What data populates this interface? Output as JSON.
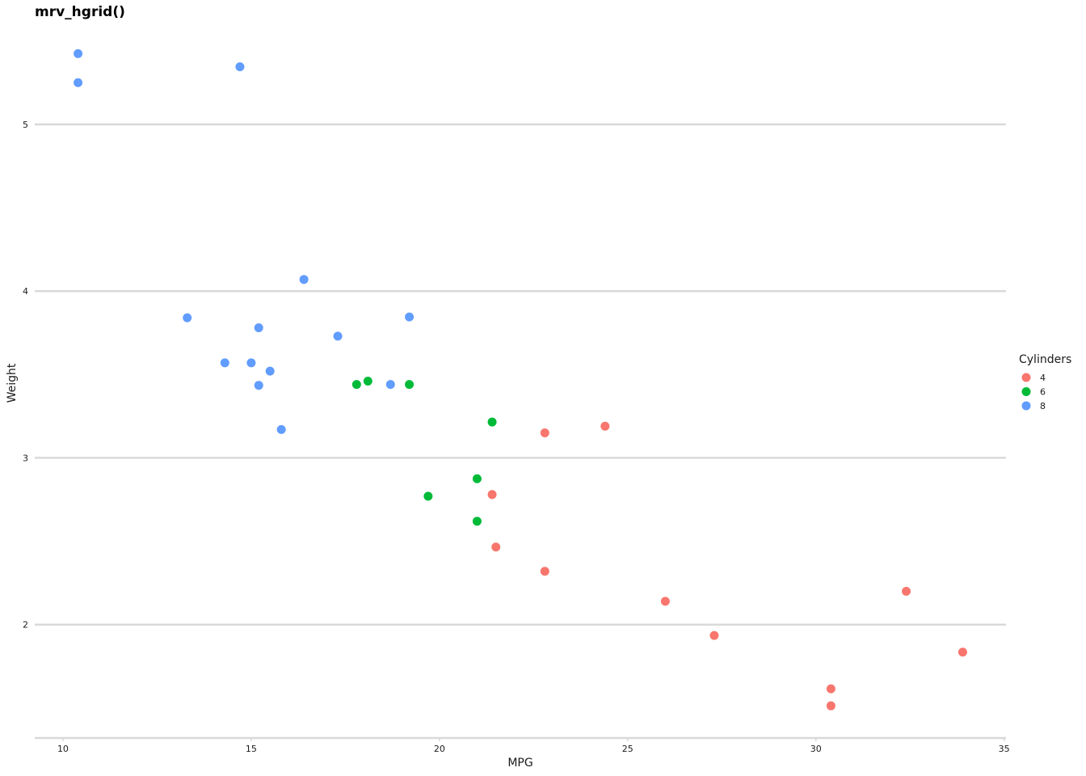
{
  "chart_data": {
    "type": "scatter",
    "title": "mrv_hgrid()",
    "xlabel": "MPG",
    "ylabel": "Weight",
    "xlim": [
      9.25,
      35.05
    ],
    "ylim": [
      1.32,
      5.61
    ],
    "xticks": [
      10,
      15,
      20,
      25,
      30,
      35
    ],
    "yticks": [
      2,
      3,
      4,
      5
    ],
    "grid": "horizontal",
    "legend_title": "Cylinders",
    "legend_position": "right",
    "series": [
      {
        "name": "4",
        "color": "#F8766D",
        "points": [
          [
            22.8,
            2.32
          ],
          [
            24.4,
            3.19
          ],
          [
            22.8,
            3.15
          ],
          [
            32.4,
            2.2
          ],
          [
            30.4,
            1.615
          ],
          [
            33.9,
            1.835
          ],
          [
            21.5,
            2.465
          ],
          [
            27.3,
            1.935
          ],
          [
            26.0,
            2.14
          ],
          [
            30.4,
            1.513
          ],
          [
            21.4,
            2.78
          ]
        ]
      },
      {
        "name": "6",
        "color": "#00BA38",
        "points": [
          [
            21.0,
            2.62
          ],
          [
            21.0,
            2.875
          ],
          [
            21.4,
            3.215
          ],
          [
            18.1,
            3.46
          ],
          [
            19.2,
            3.44
          ],
          [
            17.8,
            3.44
          ],
          [
            19.7,
            2.77
          ]
        ]
      },
      {
        "name": "8",
        "color": "#619CFF",
        "points": [
          [
            18.7,
            3.44
          ],
          [
            14.3,
            3.57
          ],
          [
            16.4,
            4.07
          ],
          [
            17.3,
            3.73
          ],
          [
            15.2,
            3.78
          ],
          [
            10.4,
            5.25
          ],
          [
            10.4,
            5.424
          ],
          [
            14.7,
            5.345
          ],
          [
            15.5,
            3.52
          ],
          [
            15.2,
            3.435
          ],
          [
            13.3,
            3.84
          ],
          [
            19.2,
            3.845
          ],
          [
            15.8,
            3.17
          ],
          [
            15.0,
            3.57
          ]
        ]
      }
    ]
  }
}
